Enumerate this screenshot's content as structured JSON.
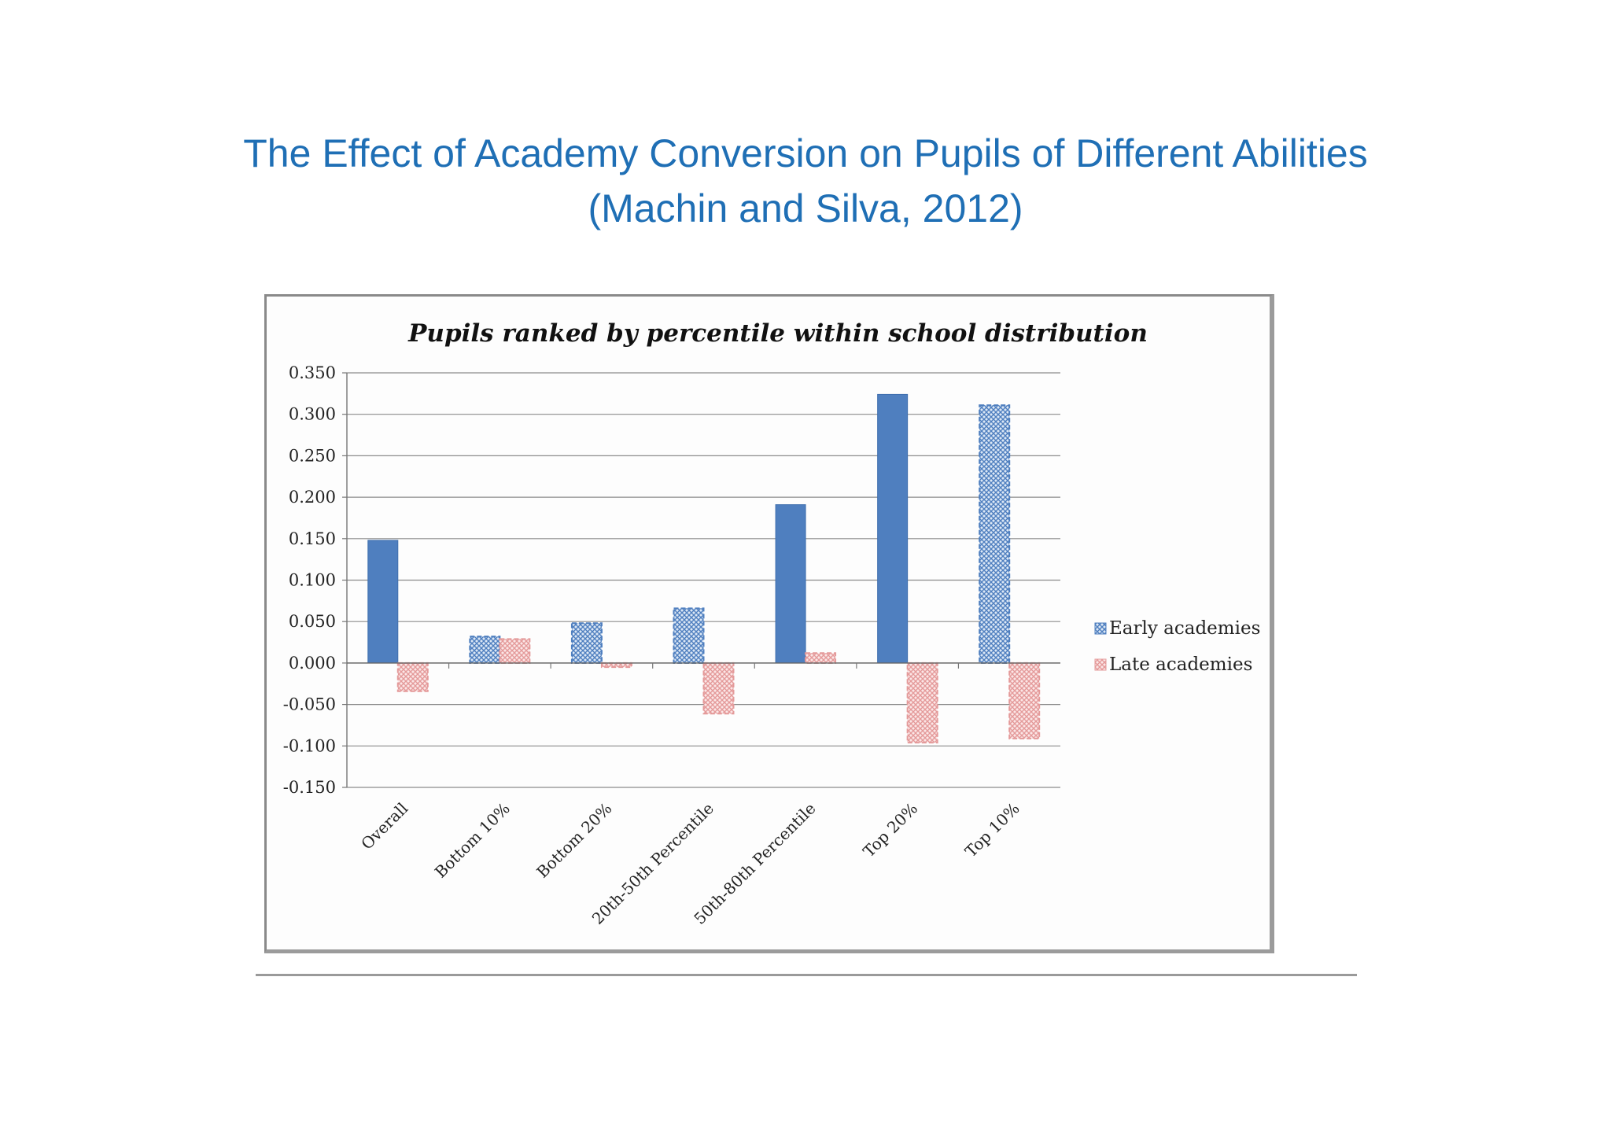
{
  "slide": {
    "title_line1": "The Effect of Academy Conversion on Pupils of Different Abilities",
    "title_line2": "(Machin and Silva, 2012)"
  },
  "chart_data": {
    "type": "bar",
    "title": "Pupils ranked by percentile within school distribution",
    "xlabel": "",
    "ylabel": "",
    "ylim": [
      -0.15,
      0.35
    ],
    "yticks": [
      0.35,
      0.3,
      0.25,
      0.2,
      0.15,
      0.1,
      0.05,
      0.0,
      -0.05,
      -0.1,
      -0.15
    ],
    "ytick_labels": [
      "0.350",
      "0.300",
      "0.250",
      "0.200",
      "0.150",
      "0.100",
      "0.050",
      "0.000",
      "-0.050",
      "-0.100",
      "-0.150"
    ],
    "grid": true,
    "legend_position": "right",
    "categories": [
      "Overall",
      "Bottom 10%",
      "Bottom 20%",
      "20th-50th Percentile",
      "50th-80th Percentile",
      "Top 20%",
      "Top 10%"
    ],
    "series": [
      {
        "name": "Early academies",
        "color": "#4f7fbf",
        "values": [
          0.148,
          0.032,
          0.048,
          0.066,
          0.191,
          0.324,
          0.311
        ],
        "significant": [
          true,
          false,
          false,
          false,
          true,
          true,
          false
        ]
      },
      {
        "name": "Late academies",
        "color": "#e8a8a8",
        "values": [
          -0.034,
          0.029,
          -0.005,
          -0.061,
          0.012,
          -0.096,
          -0.091
        ],
        "significant": [
          false,
          false,
          false,
          false,
          false,
          false,
          false
        ]
      }
    ]
  }
}
